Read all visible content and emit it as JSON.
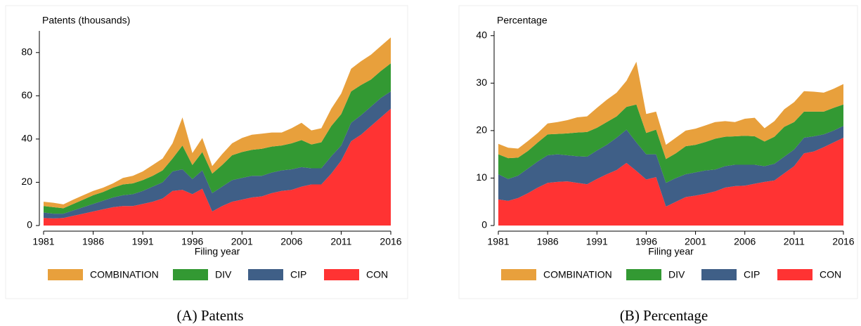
{
  "chart_data": [
    {
      "type": "stacked-area",
      "ylabel": "Patents (thousands)",
      "xlabel": "Filing year",
      "caption": "(A) Patents",
      "x": [
        1981,
        1982,
        1983,
        1984,
        1985,
        1986,
        1987,
        1988,
        1989,
        1990,
        1991,
        1992,
        1993,
        1994,
        1995,
        1996,
        1997,
        1998,
        1999,
        2000,
        2001,
        2002,
        2003,
        2004,
        2005,
        2006,
        2007,
        2008,
        2009,
        2010,
        2011,
        2012,
        2013,
        2014,
        2015,
        2016
      ],
      "xlim": [
        1981,
        2016
      ],
      "xticks": [
        1981,
        1986,
        1991,
        1996,
        2001,
        2006,
        2011,
        2016
      ],
      "ylim": [
        0,
        90
      ],
      "yticks": [
        0,
        20,
        40,
        60,
        80
      ],
      "series": [
        {
          "name": "COMBINATION",
          "color": "#e8a03c",
          "values": [
            2,
            2,
            1.8,
            2,
            2,
            2,
            2,
            2,
            3,
            3.5,
            4,
            5,
            5.5,
            7,
            13,
            5.5,
            6.5,
            3.5,
            5,
            5.5,
            6.5,
            7,
            7,
            6.5,
            6,
            7,
            8,
            6.5,
            6.5,
            8,
            9.5,
            10.5,
            11,
            11.5,
            11.5,
            12
          ]
        },
        {
          "name": "DIV",
          "color": "#339933",
          "values": [
            3,
            3,
            2.5,
            3,
            3.5,
            4,
            4,
            4.5,
            5,
            5,
            5,
            5,
            5.5,
            6,
            11,
            6.5,
            8.5,
            9,
            10,
            11.5,
            12,
            12,
            12.5,
            12,
            11.5,
            12,
            12.5,
            11,
            12,
            14,
            14.5,
            14.5,
            14,
            12.5,
            12.5,
            13
          ]
        },
        {
          "name": "CIP",
          "color": "#3f5f87",
          "values": [
            2.5,
            2.2,
            2,
            2.5,
            3,
            3.5,
            4,
            4.5,
            5,
            5.5,
            6,
            7,
            7.5,
            9,
            9.5,
            7,
            8.5,
            8.5,
            9,
            10,
            10,
            10,
            9.5,
            9.5,
            9.5,
            9.5,
            9,
            7.5,
            7.5,
            8,
            7,
            8.5,
            9,
            9,
            9,
            8
          ]
        },
        {
          "name": "CON",
          "color": "#ff3333",
          "values": [
            3.5,
            3.3,
            3.5,
            4.5,
            5.5,
            6.5,
            7.5,
            8.5,
            9,
            9,
            10,
            11,
            12.5,
            16,
            16.5,
            14.5,
            17,
            6.5,
            9,
            11,
            12,
            13,
            13.5,
            15,
            16,
            16.5,
            18,
            19,
            19,
            24,
            30,
            39,
            42,
            46,
            50,
            54
          ]
        }
      ]
    },
    {
      "type": "stacked-area",
      "ylabel": "Percentage",
      "xlabel": "Filing year",
      "caption": "(B) Percentage",
      "x": [
        1981,
        1982,
        1983,
        1984,
        1985,
        1986,
        1987,
        1988,
        1989,
        1990,
        1991,
        1992,
        1993,
        1994,
        1995,
        1996,
        1997,
        1998,
        1999,
        2000,
        2001,
        2002,
        2003,
        2004,
        2005,
        2006,
        2007,
        2008,
        2009,
        2010,
        2011,
        2012,
        2013,
        2014,
        2015,
        2016
      ],
      "xlim": [
        1981,
        2016
      ],
      "xticks": [
        1981,
        1986,
        1991,
        1996,
        2001,
        2006,
        2011,
        2016
      ],
      "ylim": [
        0,
        41
      ],
      "yticks": [
        0,
        10,
        20,
        30,
        40
      ],
      "series": [
        {
          "name": "COMBINATION",
          "color": "#e8a03c",
          "values": [
            2.2,
            2.2,
            1.9,
            2.1,
            2,
            2.3,
            2.5,
            2.8,
            3.2,
            3.3,
            4.2,
            4.7,
            5,
            5.5,
            9,
            4,
            3.8,
            3,
            3.3,
            3.3,
            3.4,
            3.5,
            3.5,
            3.3,
            3,
            3.6,
            3.9,
            2.8,
            3.3,
            3.7,
            4.2,
            4.3,
            4.2,
            4,
            4,
            4.3
          ]
        },
        {
          "name": "DIV",
          "color": "#339933",
          "values": [
            4.2,
            4.4,
            3.8,
            3.7,
            4,
            4.4,
            4.3,
            4.6,
            5,
            5.2,
            4.8,
            4.8,
            4.5,
            4.8,
            8,
            4.5,
            5.2,
            5,
            5.2,
            5.9,
            5.8,
            6,
            6.5,
            6.2,
            6,
            6.1,
            6,
            5.2,
            5.7,
            6.3,
            5.8,
            5.5,
            5.2,
            4.8,
            4.8,
            4.5
          ]
        },
        {
          "name": "CIP",
          "color": "#3f5f87",
          "values": [
            5.3,
            4.6,
            4.7,
            5.2,
            5.5,
            5.8,
            5.8,
            5.5,
            5.6,
            5.8,
            6,
            6.2,
            6.8,
            7,
            6,
            5.3,
            4.8,
            5,
            5,
            4.8,
            4.9,
            4.9,
            4.6,
            4.5,
            4.5,
            4.4,
            4,
            3.3,
            3.5,
            3.5,
            3.5,
            3.3,
            3.2,
            2.7,
            2.5,
            2.5
          ]
        },
        {
          "name": "CON",
          "color": "#ff3333",
          "values": [
            5.5,
            5.2,
            5.8,
            6.8,
            8,
            9,
            9.2,
            9.3,
            9,
            8.7,
            9.8,
            10.8,
            11.7,
            13.2,
            11.5,
            9.7,
            10.2,
            4,
            5,
            6,
            6.3,
            6.7,
            7.2,
            8,
            8.3,
            8.4,
            8.8,
            9.2,
            9.5,
            11,
            12.5,
            15.2,
            15.6,
            16.5,
            17.5,
            18.5
          ]
        }
      ]
    }
  ]
}
